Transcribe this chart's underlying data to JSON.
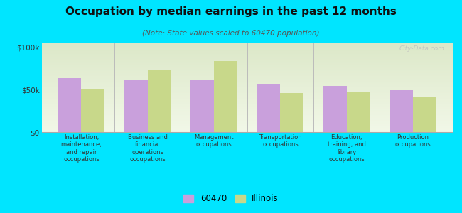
{
  "title": "Occupation by median earnings in the past 12 months",
  "subtitle": "(Note: State values scaled to 60470 population)",
  "categories": [
    "Installation,\nmaintenance,\nand repair\noccupations",
    "Business and\nfinancial\noperations\noccupations",
    "Management\noccupations",
    "Transportation\noccupations",
    "Education,\ntraining, and\nlibrary\noccupations",
    "Production\noccupations"
  ],
  "values_60470": [
    63000,
    62000,
    62000,
    57000,
    54000,
    49000
  ],
  "values_illinois": [
    51000,
    73000,
    83000,
    46000,
    47000,
    41000
  ],
  "color_60470": "#c9a0dc",
  "color_illinois": "#c8d88a",
  "background_color": "#00e5ff",
  "ylabel_ticks": [
    "$0",
    "$50k",
    "$100k"
  ],
  "ytick_values": [
    0,
    50000,
    100000
  ],
  "ylim": [
    0,
    105000
  ],
  "legend_label_60470": "60470",
  "legend_label_illinois": "Illinois",
  "bar_width": 0.35,
  "watermark": "City-Data.com",
  "plot_bg_color_top": "#f0f5e0",
  "plot_bg_color_bottom": "#e8f0d8"
}
